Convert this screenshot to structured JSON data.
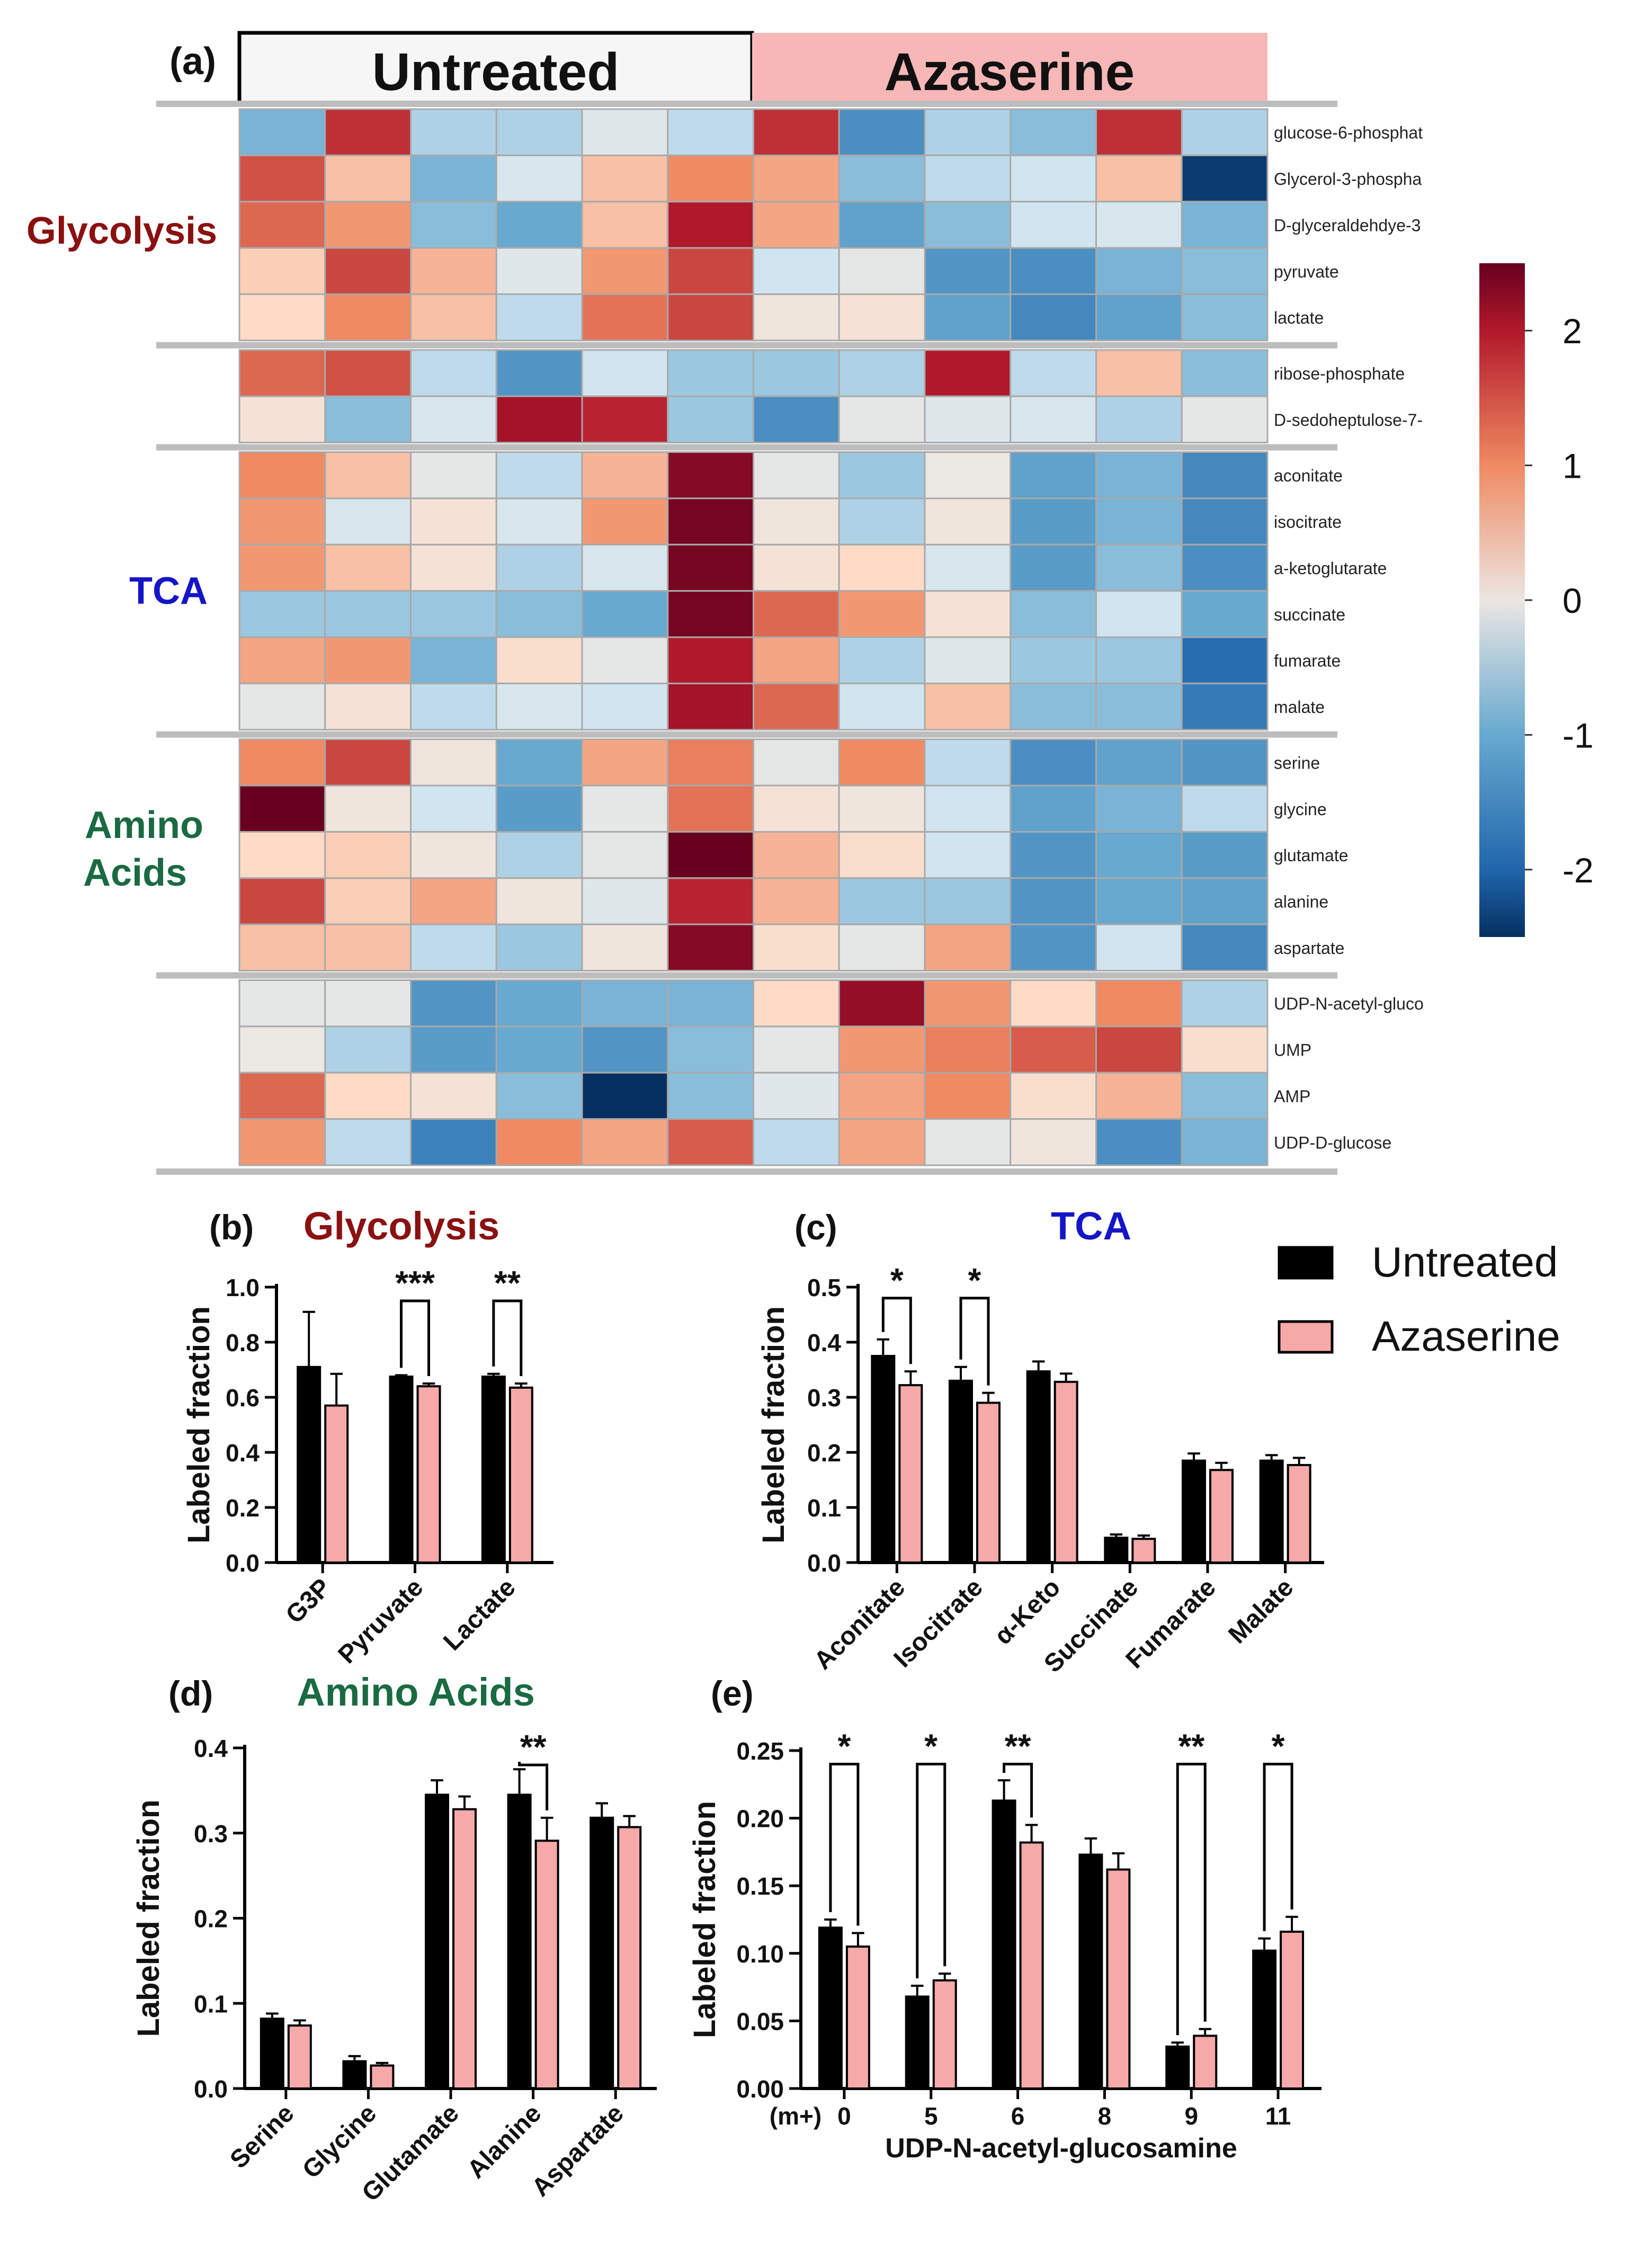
{
  "legend": {
    "untreated": "Untreated",
    "azaserine": "Azaserine"
  },
  "colors": {
    "untreated": "#000000",
    "azaserine": "#f6a9a9",
    "glycolysis": "#8b1010",
    "tca": "#1515c8",
    "amino": "#1a6a42"
  },
  "chart_data": [
    {
      "panel": "(a)",
      "type": "heatmap",
      "column_groups": [
        "Untreated",
        "Azaserine"
      ],
      "columns_per_group": 6,
      "row_groups": [
        "Glycolysis",
        "TCA",
        "Amino Acids"
      ],
      "rows": [
        "glucose-6-phosphat",
        "Glycerol-3-phospha",
        "D-glyceraldehdye-3",
        "pyruvate",
        "lactate",
        "ribose-phosphate",
        "D-sedoheptulose-7-",
        "aconitate",
        "isocitrate",
        "a-ketoglutarate",
        "succinate",
        "fumarate",
        "malate",
        "serine",
        "glycine",
        "glutamate",
        "alanine",
        "aspartate",
        "UDP-N-acetyl-gluco",
        "UMP",
        "AMP",
        "UDP-D-glucose"
      ],
      "values": [
        [
          -0.9,
          1.8,
          -0.6,
          -0.6,
          -0.2,
          -0.5,
          1.8,
          -1.4,
          -0.6,
          -0.8,
          1.8,
          -0.6
        ],
        [
          1.5,
          0.6,
          -0.9,
          -0.3,
          0.6,
          1.0,
          0.8,
          -0.8,
          -0.5,
          -0.4,
          0.6,
          -2.4
        ],
        [
          1.3,
          0.9,
          -0.8,
          -1.0,
          0.6,
          2.0,
          0.8,
          -1.1,
          -0.8,
          -0.4,
          -0.3,
          -0.9
        ],
        [
          0.5,
          1.6,
          0.7,
          -0.2,
          0.9,
          1.6,
          -0.4,
          -0.1,
          -1.3,
          -1.4,
          -0.9,
          -0.8
        ],
        [
          0.4,
          1.0,
          0.6,
          -0.5,
          1.2,
          1.6,
          0.1,
          0.2,
          -1.1,
          -1.5,
          -1.1,
          -0.8
        ],
        [
          1.3,
          1.5,
          -0.5,
          -1.3,
          -0.4,
          -0.7,
          -0.7,
          -0.6,
          2.0,
          -0.5,
          0.6,
          -0.8
        ],
        [
          0.2,
          -0.8,
          -0.3,
          2.1,
          1.9,
          -0.7,
          -1.4,
          -0.1,
          -0.2,
          -0.3,
          -0.6,
          -0.1
        ],
        [
          1.0,
          0.6,
          -0.1,
          -0.5,
          0.7,
          2.3,
          -0.1,
          -0.7,
          0.0,
          -1.1,
          -0.9,
          -1.5
        ],
        [
          0.9,
          -0.3,
          0.2,
          -0.3,
          0.9,
          2.4,
          0.1,
          -0.6,
          0.1,
          -1.2,
          -0.9,
          -1.5
        ],
        [
          0.9,
          0.6,
          0.2,
          -0.6,
          -0.3,
          2.4,
          0.2,
          0.4,
          -0.3,
          -1.2,
          -0.8,
          -1.4
        ],
        [
          -0.7,
          -0.7,
          -0.7,
          -0.8,
          -1.0,
          2.4,
          1.3,
          0.9,
          0.2,
          -0.8,
          -0.4,
          -1.0
        ],
        [
          0.8,
          0.9,
          -0.9,
          0.3,
          -0.1,
          2.0,
          0.8,
          -0.6,
          -0.2,
          -0.7,
          -0.7,
          -1.9
        ],
        [
          -0.1,
          0.2,
          -0.5,
          -0.3,
          -0.4,
          2.1,
          1.3,
          -0.4,
          0.6,
          -0.8,
          -0.8,
          -1.7
        ],
        [
          1.0,
          1.6,
          0.1,
          -1.0,
          0.8,
          1.1,
          -0.1,
          1.0,
          -0.5,
          -1.4,
          -1.1,
          -1.3
        ],
        [
          2.5,
          0.1,
          -0.4,
          -1.2,
          -0.1,
          1.2,
          0.2,
          0.1,
          -0.4,
          -1.1,
          -0.9,
          -0.5
        ],
        [
          0.4,
          0.5,
          0.1,
          -0.6,
          -0.1,
          2.5,
          0.7,
          0.3,
          -0.4,
          -1.3,
          -1.0,
          -1.2
        ],
        [
          1.6,
          0.5,
          0.8,
          0.1,
          -0.2,
          1.9,
          0.7,
          -0.7,
          -0.7,
          -1.3,
          -1.0,
          -1.1
        ],
        [
          0.6,
          0.6,
          -0.5,
          -0.7,
          0.1,
          2.3,
          0.3,
          -0.1,
          0.8,
          -1.3,
          -0.4,
          -1.5
        ],
        [
          -0.1,
          -0.1,
          -1.3,
          -1.0,
          -0.9,
          -0.9,
          0.4,
          2.2,
          0.9,
          0.4,
          1.0,
          -0.6
        ],
        [
          0.0,
          -0.6,
          -1.2,
          -1.0,
          -1.3,
          -0.8,
          -0.1,
          0.9,
          1.1,
          1.4,
          1.6,
          0.3
        ],
        [
          1.3,
          0.4,
          0.2,
          -0.8,
          -2.5,
          -0.8,
          -0.2,
          0.8,
          1.0,
          0.3,
          0.7,
          -0.8
        ],
        [
          0.9,
          -0.5,
          -1.6,
          1.0,
          0.8,
          1.4,
          -0.5,
          0.8,
          -0.1,
          0.1,
          -1.4,
          -0.9
        ]
      ],
      "colorbar": {
        "range": [
          -2.5,
          2.5
        ],
        "ticks": [
          2,
          1,
          0,
          -1,
          -2
        ],
        "labels": [
          "2",
          "1",
          "0",
          "-1",
          "-2"
        ]
      }
    },
    {
      "panel": "(b)",
      "title": "Glycolysis",
      "type": "bar",
      "ylabel": "Labeled fraction",
      "ylim": [
        0,
        1.0
      ],
      "yticks": [
        0.0,
        0.2,
        0.4,
        0.6,
        0.8,
        1.0
      ],
      "ytick_labels": [
        "0.0",
        "0.2",
        "0.4",
        "0.6",
        "0.8",
        "1.0"
      ],
      "categories": [
        "G3P",
        "Pyruvate",
        "Lactate"
      ],
      "series": [
        {
          "name": "Untreated",
          "values": [
            0.71,
            0.675,
            0.675
          ],
          "errors": [
            0.2,
            0.005,
            0.01
          ]
        },
        {
          "name": "Azaserine",
          "values": [
            0.57,
            0.64,
            0.635
          ],
          "errors": [
            0.115,
            0.01,
            0.015
          ]
        }
      ],
      "significance": [
        {
          "category": 1,
          "label": "***",
          "y": 0.95
        },
        {
          "category": 2,
          "label": "**",
          "y": 0.95
        }
      ]
    },
    {
      "panel": "(c)",
      "title": "TCA",
      "type": "bar",
      "ylabel": "Labeled fraction",
      "ylim": [
        0,
        0.5
      ],
      "yticks": [
        0.0,
        0.1,
        0.2,
        0.3,
        0.4,
        0.5
      ],
      "ytick_labels": [
        "0.0",
        "0.1",
        "0.2",
        "0.3",
        "0.4",
        "0.5"
      ],
      "categories": [
        "Aconitate",
        "Isocitrate",
        "α-Keto",
        "Succinate",
        "Fumarate",
        "Malate"
      ],
      "series": [
        {
          "name": "Untreated",
          "values": [
            0.375,
            0.33,
            0.347,
            0.045,
            0.185,
            0.185
          ],
          "errors": [
            0.03,
            0.025,
            0.018,
            0.006,
            0.013,
            0.01
          ]
        },
        {
          "name": "Azaserine",
          "values": [
            0.322,
            0.29,
            0.328,
            0.043,
            0.168,
            0.177
          ],
          "errors": [
            0.025,
            0.018,
            0.015,
            0.006,
            0.013,
            0.013
          ]
        }
      ],
      "significance": [
        {
          "category": 0,
          "label": "*",
          "y": 0.48
        },
        {
          "category": 1,
          "label": "*",
          "y": 0.48
        }
      ]
    },
    {
      "panel": "(d)",
      "title": "Amino Acids",
      "type": "bar",
      "ylabel": "Labeled fraction",
      "ylim": [
        0,
        0.4
      ],
      "yticks": [
        0.0,
        0.1,
        0.2,
        0.3,
        0.4
      ],
      "ytick_labels": [
        "0.0",
        "0.1",
        "0.2",
        "0.3",
        "0.4"
      ],
      "categories": [
        "Serine",
        "Glycine",
        "Glutamate",
        "Alanine",
        "Aspartate"
      ],
      "series": [
        {
          "name": "Untreated",
          "values": [
            0.082,
            0.032,
            0.345,
            0.345,
            0.318
          ],
          "errors": [
            0.006,
            0.006,
            0.017,
            0.03,
            0.017
          ]
        },
        {
          "name": "Azaserine",
          "values": [
            0.074,
            0.027,
            0.328,
            0.291,
            0.307
          ],
          "errors": [
            0.006,
            0.003,
            0.015,
            0.027,
            0.013
          ]
        }
      ],
      "significance": [
        {
          "category": 3,
          "label": "**",
          "y": 0.38
        }
      ]
    },
    {
      "panel": "(e)",
      "type": "bar",
      "ylabel": "Labeled fraction",
      "xlabel": "UDP-N-acetyl-glucosamine",
      "x_prefix": "(m+)",
      "ylim": [
        0,
        0.25
      ],
      "yticks": [
        0.0,
        0.05,
        0.1,
        0.15,
        0.2,
        0.25
      ],
      "ytick_labels": [
        "0.00",
        "0.05",
        "0.10",
        "0.15",
        "0.20",
        "0.25"
      ],
      "categories": [
        "0",
        "5",
        "6",
        "8",
        "9",
        "11"
      ],
      "series": [
        {
          "name": "Untreated",
          "values": [
            0.119,
            0.068,
            0.213,
            0.173,
            0.031,
            0.102
          ],
          "errors": [
            0.006,
            0.008,
            0.015,
            0.012,
            0.003,
            0.009
          ]
        },
        {
          "name": "Azaserine",
          "values": [
            0.105,
            0.08,
            0.182,
            0.162,
            0.039,
            0.116
          ],
          "errors": [
            0.01,
            0.005,
            0.013,
            0.012,
            0.005,
            0.011
          ]
        }
      ],
      "significance": [
        {
          "category": 0,
          "label": "*",
          "y": 0.24
        },
        {
          "category": 1,
          "label": "*",
          "y": 0.24
        },
        {
          "category": 2,
          "label": "**",
          "y": 0.24
        },
        {
          "category": 4,
          "label": "**",
          "y": 0.24
        },
        {
          "category": 5,
          "label": "*",
          "y": 0.24
        }
      ]
    }
  ]
}
